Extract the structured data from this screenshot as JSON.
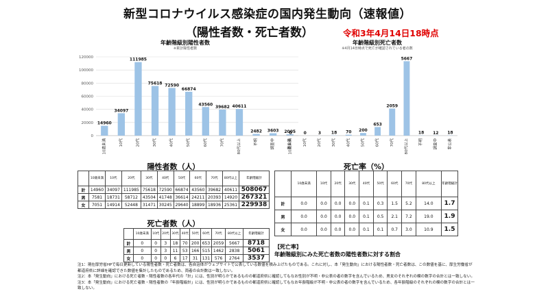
{
  "header": {
    "title": "新型コロナウイルス感染症の国内発生動向（速報値）",
    "subtitle": "（陽性者数・死亡者数）",
    "date": "令和3年4月14日18時点"
  },
  "charts": {
    "categories": [
      "10歳未満",
      "10代",
      "20代",
      "30代",
      "40代",
      "50代",
      "60代",
      "70代",
      "80代以上",
      "不明",
      "調査中",
      "非公表"
    ],
    "positive": {
      "title": "年齢階級別陽性者数",
      "note": "※累計陽性者数",
      "yticks": [
        "0",
        "20000",
        "40000",
        "60000",
        "80000",
        "100000",
        "120000"
      ],
      "ylim": [
        0,
        120000
      ],
      "color": "#9dc3e6",
      "values": [
        14960,
        34097,
        111985,
        75618,
        72590,
        66874,
        43560,
        39682,
        40611,
        2482,
        3603,
        2005
      ]
    },
    "deaths": {
      "title": "年齢階級別死亡者数",
      "note": "※4月14日時点で死亡が確認されている者の数",
      "ylim": [
        0,
        6000
      ],
      "color": "#9dc3e6",
      "values": [
        0,
        0,
        3,
        18,
        70,
        200,
        653,
        2059,
        5667,
        18,
        12,
        18
      ]
    }
  },
  "positive_table": {
    "title": "陽性者数（人）",
    "headers": [
      "10歳未満",
      "10代",
      "20代",
      "30代",
      "40代",
      "50代",
      "60代",
      "70代",
      "80代以上",
      "年齢階級計"
    ],
    "rows": [
      {
        "label": "計",
        "values": [
          "14960",
          "34097",
          "111985",
          "75618",
          "72590",
          "66874",
          "43560",
          "39682",
          "40611"
        ],
        "total": "508067"
      },
      {
        "label": "男",
        "values": [
          "7581",
          "18731",
          "58712",
          "43504",
          "41748",
          "36614",
          "24211",
          "20393",
          "14920"
        ],
        "total": "267321"
      },
      {
        "label": "女",
        "values": [
          "7051",
          "14914",
          "52448",
          "31471",
          "30245",
          "29640",
          "18899",
          "18936",
          "25361"
        ],
        "total": "229938"
      }
    ]
  },
  "death_table": {
    "title": "死亡者数（人）",
    "headers": [
      "10歳未満",
      "10代",
      "20代",
      "30代",
      "40代",
      "50代",
      "60代",
      "70代",
      "80代以上",
      "年齢階級計"
    ],
    "rows": [
      {
        "label": "計",
        "values": [
          "0",
          "0",
          "3",
          "18",
          "70",
          "200",
          "653",
          "2059",
          "5667"
        ],
        "total": "8718"
      },
      {
        "label": "男",
        "values": [
          "0",
          "0",
          "3",
          "11",
          "53",
          "166",
          "515",
          "1462",
          "2838"
        ],
        "total": "5061"
      },
      {
        "label": "女",
        "values": [
          "0",
          "0",
          "0",
          "6",
          "17",
          "31",
          "131",
          "576",
          "2764"
        ],
        "total": "3537"
      }
    ]
  },
  "rate_table": {
    "title": "死亡率（%）",
    "headers": [
      "10歳未満",
      "10代",
      "20代",
      "30代",
      "40代",
      "50代",
      "60代",
      "70代",
      "80代以上",
      "年齢階級計"
    ],
    "rows": [
      {
        "label": "計",
        "values": [
          "0.0",
          "0.0",
          "0.0",
          "0.0",
          "0.1",
          "0.3",
          "1.5",
          "5.2",
          "14.0"
        ],
        "total": "1.7"
      },
      {
        "label": "男",
        "values": [
          "0.0",
          "0.0",
          "0.0",
          "0.0",
          "0.1",
          "0.5",
          "2.1",
          "7.2",
          "19.0"
        ],
        "total": "1.9"
      },
      {
        "label": "女",
        "values": [
          "0.0",
          "0.0",
          "0.0",
          "0.0",
          "0.1",
          "0.1",
          "0.7",
          "3.0",
          "10.9"
        ],
        "total": "1.5"
      }
    ]
  },
  "legend": {
    "key": "【死亡率】",
    "text": "年齢階級別にみた死亡者数の陽性者数に対する割合"
  },
  "notes": [
    "注1：現在厚労省HPで毎日更新している陽性者数・死亡者数は、各自治体がウェブサイトで公表している数値を積み上げたものである。これに対し、本「発生動向」における陽性者数・死亡者数は、この数値を基に、厚生労働省が都道府県に詳細を確認できた数値を集計したものであるため、両者の合計数は一致しない。",
    "注2：本「発生動向」における死亡者数・陽性者数の各年代の「計」には、性別が明らかであるものの都道府県に確認してもなお性別が不明・非公表の者の数字を含んでいるため、男女のそれぞれの欄の数字の合計とは一致しない。",
    "注3：本「発生動向」における死亡者数・陽性者数の「年齢階級計」には、性別が明らかであるものの都道府県に確認してもなお年齢階級が不明・非公表の者の数字を含んでいるため、各年齢階級のそれぞれの欄の数字の合計とは一致しない。"
  ]
}
